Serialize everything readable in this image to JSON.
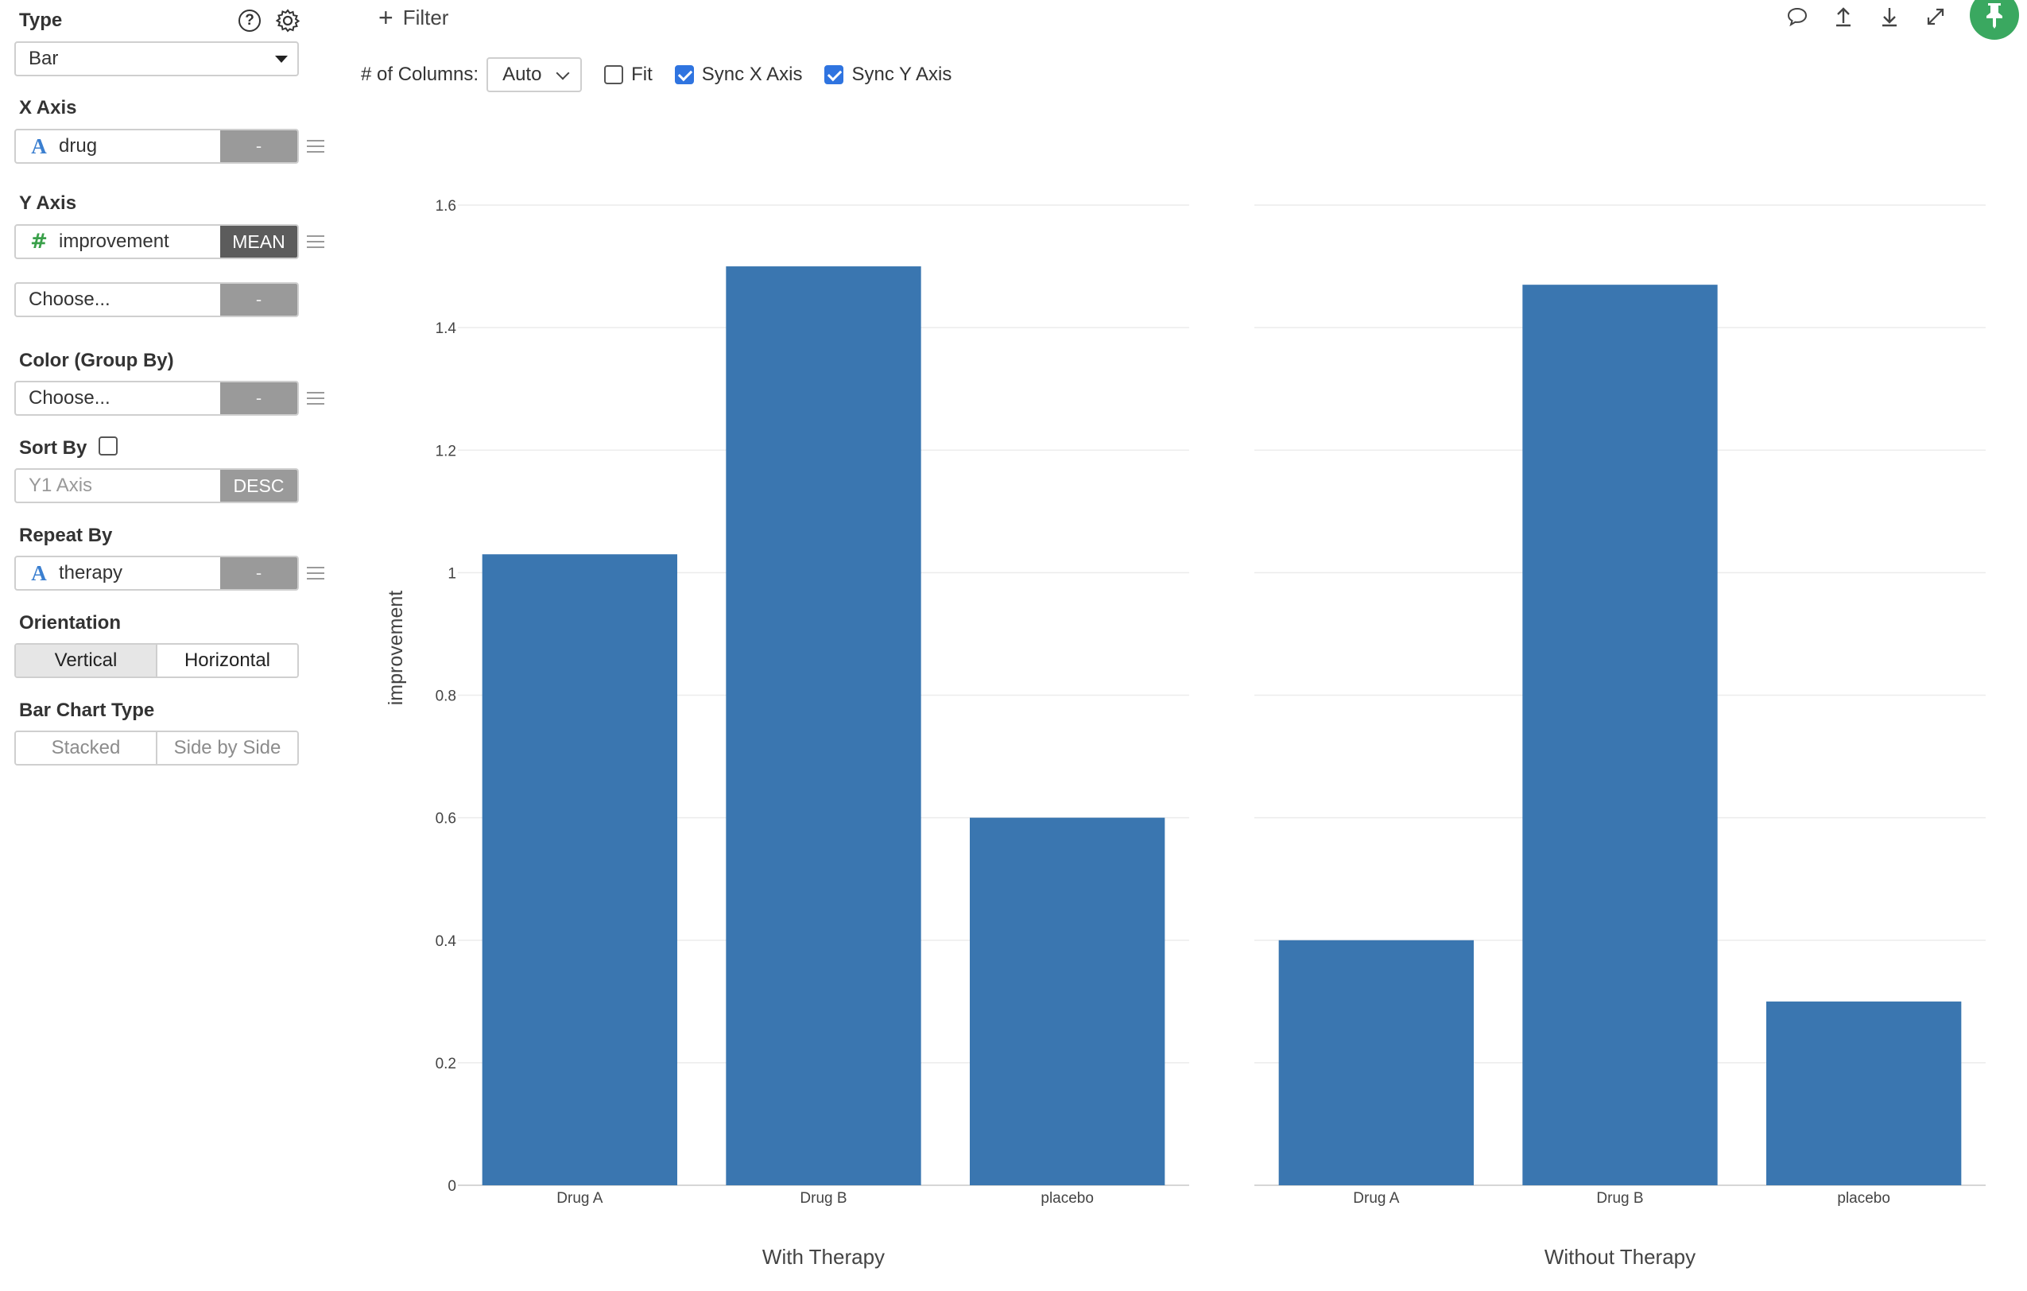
{
  "sidebar": {
    "type": {
      "label": "Type",
      "value": "Bar"
    },
    "x_axis": {
      "label": "X Axis",
      "field": "drug",
      "agg": "-"
    },
    "y_axis": {
      "label": "Y Axis",
      "field": "improvement",
      "agg": "MEAN"
    },
    "y2": {
      "placeholder": "Choose...",
      "agg": "-"
    },
    "color": {
      "label": "Color (Group By)",
      "placeholder": "Choose...",
      "agg": "-"
    },
    "sort": {
      "label": "Sort By",
      "field": "Y1 Axis",
      "order": "DESC"
    },
    "repeat": {
      "label": "Repeat By",
      "field": "therapy",
      "agg": "-"
    },
    "orientation": {
      "label": "Orientation",
      "options": [
        "Vertical",
        "Horizontal"
      ]
    },
    "bar_type": {
      "label": "Bar Chart Type",
      "options": [
        "Stacked",
        "Side by Side"
      ]
    }
  },
  "toolbar": {
    "filter_label": "Filter",
    "columns_label": "# of Columns:",
    "columns_value": "Auto",
    "fit_label": "Fit",
    "sync_x_label": "Sync X Axis",
    "sync_y_label": "Sync Y Axis"
  },
  "icons": [
    "help-icon",
    "gear-icon",
    "comment-icon",
    "upload-icon",
    "download-icon",
    "expand-icon",
    "pin-icon",
    "menu-icon",
    "plus-icon"
  ],
  "colors": {
    "bar": "#3a76b0",
    "pin": "#3aa860",
    "check": "#2f74e0"
  },
  "chart_data": {
    "type": "bar",
    "ylabel": "improvement",
    "ylim": [
      0,
      1.6
    ],
    "yticks": [
      "0",
      "0.2",
      "0.4",
      "0.6",
      "0.8",
      "1",
      "1.2",
      "1.4",
      "1.6"
    ],
    "facets": [
      {
        "title": "With Therapy",
        "categories": [
          "Drug A",
          "Drug B",
          "placebo"
        ],
        "values": [
          1.03,
          1.5,
          0.6
        ]
      },
      {
        "title": "Without Therapy",
        "categories": [
          "Drug A",
          "Drug B",
          "placebo"
        ],
        "values": [
          0.4,
          1.47,
          0.3
        ]
      }
    ]
  }
}
